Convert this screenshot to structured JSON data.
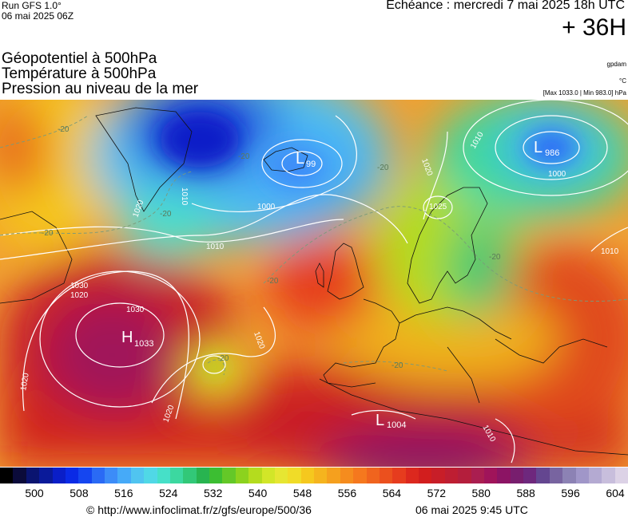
{
  "header": {
    "run_line1": "Run GFS 1.0°",
    "run_line2": "06 mai 2025 06Z",
    "echeance": "Echéance : mercredi 7 mai 2025 18h UTC",
    "lead": "+ 36H"
  },
  "params": {
    "line1": "Géopotentiel à 500hPa",
    "line2": "Température à 500hPa",
    "line3": "Pression au niveau de la mer"
  },
  "units": {
    "geopotential": "gpdam",
    "temperature": "°C",
    "pressure": "[Max 1033.0 | Min 983.0] hPa"
  },
  "map": {
    "highs": [
      {
        "letter": "H",
        "value": "1033"
      }
    ],
    "lows": [
      {
        "letter": "L",
        "value": "986"
      },
      {
        "letter": "L",
        "value": "99"
      },
      {
        "letter": "L",
        "value": "1004"
      }
    ],
    "isobar_labels": [
      "1030",
      "1020",
      "1020",
      "1020",
      "1010",
      "1010",
      "1000",
      "1000",
      "1020",
      "1025",
      "1010",
      "1020",
      "1010",
      "1020",
      "1010",
      "1030"
    ],
    "temperature_labels": [
      "-20",
      "-20",
      "-20",
      "-20",
      "-20",
      "-20",
      "-20",
      "-20",
      "-20"
    ]
  },
  "colorbar": {
    "colors": [
      "#000000",
      "#0b0b3a",
      "#0a1470",
      "#0a1a9a",
      "#0a1ec8",
      "#0a2ae6",
      "#1546f0",
      "#2a6af5",
      "#3c8cf8",
      "#46aaf8",
      "#50c4f0",
      "#50d8e6",
      "#46e0c8",
      "#3cd8a0",
      "#32c878",
      "#28b450",
      "#3cbe32",
      "#64c828",
      "#8cd21e",
      "#b4dc1e",
      "#d2e628",
      "#e6e632",
      "#f0dc28",
      "#f5c81e",
      "#f5b41e",
      "#f5a01e",
      "#f58c1e",
      "#f5781e",
      "#f0641e",
      "#eb501e",
      "#e63c1e",
      "#dc281e",
      "#d21e1e",
      "#c81e28",
      "#be1e32",
      "#b41e3c",
      "#aa1e50",
      "#a0145a",
      "#8c1464",
      "#781e6e",
      "#6e287d",
      "#644690",
      "#7864a0",
      "#8c82b4",
      "#a096c8",
      "#b4aad2",
      "#c8bedc",
      "#dcd2e6"
    ],
    "ticks": [
      "500",
      "508",
      "516",
      "524",
      "532",
      "540",
      "548",
      "556",
      "564",
      "572",
      "580",
      "588",
      "596",
      "604"
    ]
  },
  "footer": {
    "url": "© http://www.infoclimat.fr/z/gfs/europe/500/36",
    "date": "06 mai 2025  9:45 UTC"
  }
}
